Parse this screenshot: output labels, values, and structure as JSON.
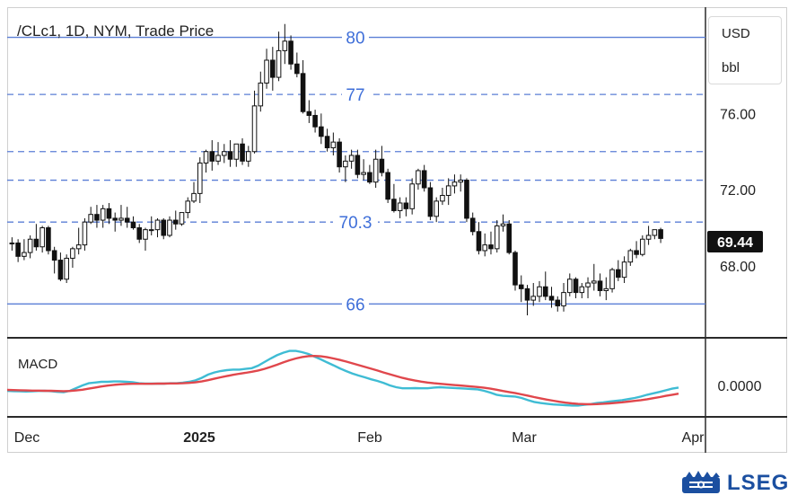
{
  "chart_data": [
    {
      "type": "candlestick",
      "title": "/CLc1, 1D, NYM, Trade Price",
      "currency": "USD",
      "unit": "bbl",
      "last_price_label": "69.44",
      "last_price": 69.44,
      "ylim": [
        64.6,
        81.3
      ],
      "y_ticks": [
        "76.00",
        "72.00",
        "68.00"
      ],
      "x_ticks": [
        "Dec",
        "2025",
        "Feb",
        "Mar",
        "Apr"
      ],
      "levels": [
        {
          "value": 80,
          "label": "80",
          "style": "solid"
        },
        {
          "value": 77,
          "label": "77",
          "style": "dashed"
        },
        {
          "value": 74,
          "label": "",
          "style": "dashed"
        },
        {
          "value": 72.5,
          "label": "",
          "style": "dashed"
        },
        {
          "value": 70.3,
          "label": "70.3",
          "style": "dashed"
        },
        {
          "value": 66,
          "label": "66",
          "style": "solid"
        }
      ],
      "candles": [
        [
          69.2,
          69.5,
          68.8,
          69.2
        ],
        [
          69.2,
          69.4,
          68.2,
          68.5
        ],
        [
          68.5,
          69.4,
          68.3,
          68.7
        ],
        [
          68.7,
          69.6,
          68.4,
          69.4
        ],
        [
          69.4,
          70.2,
          68.8,
          69.0
        ],
        [
          69.0,
          70.1,
          68.7,
          70.0
        ],
        [
          70.0,
          70.1,
          68.6,
          68.8
        ],
        [
          68.8,
          69.0,
          67.6,
          68.3
        ],
        [
          68.3,
          68.7,
          67.2,
          67.3
        ],
        [
          67.3,
          68.6,
          67.1,
          68.4
        ],
        [
          68.4,
          69.0,
          67.9,
          68.9
        ],
        [
          68.9,
          70.0,
          68.6,
          69.1
        ],
        [
          69.1,
          70.5,
          68.8,
          70.3
        ],
        [
          70.3,
          71.1,
          70.2,
          70.7
        ],
        [
          70.7,
          71.2,
          70.0,
          70.4
        ],
        [
          70.4,
          71.2,
          70.0,
          71.0
        ],
        [
          71.0,
          71.3,
          70.2,
          70.5
        ],
        [
          70.5,
          70.8,
          69.8,
          70.4
        ],
        [
          70.4,
          71.2,
          70.1,
          70.5
        ],
        [
          70.5,
          71.1,
          70.0,
          70.3
        ],
        [
          70.3,
          70.6,
          69.9,
          70.0
        ],
        [
          70.0,
          70.2,
          69.2,
          69.4
        ],
        [
          69.4,
          70.0,
          68.8,
          69.9
        ],
        [
          69.9,
          70.6,
          69.6,
          69.9
        ],
        [
          69.9,
          70.5,
          69.5,
          70.4
        ],
        [
          70.4,
          70.5,
          69.4,
          69.6
        ],
        [
          69.6,
          70.6,
          69.5,
          70.4
        ],
        [
          70.4,
          70.9,
          69.9,
          70.2
        ],
        [
          70.2,
          70.8,
          70.1,
          70.8
        ],
        [
          70.8,
          71.6,
          70.5,
          71.4
        ],
        [
          71.4,
          72.4,
          71.3,
          71.8
        ],
        [
          71.8,
          73.7,
          71.3,
          73.4
        ],
        [
          73.4,
          74.1,
          72.9,
          74.0
        ],
        [
          74.0,
          74.6,
          73.0,
          73.5
        ],
        [
          73.5,
          74.5,
          73.3,
          73.8
        ],
        [
          73.8,
          74.4,
          73.4,
          74.0
        ],
        [
          74.0,
          74.6,
          73.2,
          73.6
        ],
        [
          73.6,
          74.4,
          73.2,
          74.4
        ],
        [
          74.4,
          74.7,
          73.3,
          73.5
        ],
        [
          73.5,
          74.3,
          73.2,
          74.0
        ],
        [
          74.0,
          77.2,
          73.9,
          76.4
        ],
        [
          76.4,
          78.2,
          76.1,
          77.6
        ],
        [
          77.6,
          79.4,
          77.3,
          78.8
        ],
        [
          78.8,
          79.5,
          77.2,
          77.9
        ],
        [
          77.9,
          80.3,
          77.7,
          79.3
        ],
        [
          79.3,
          80.7,
          78.6,
          79.8
        ],
        [
          79.8,
          80.1,
          78.3,
          78.6
        ],
        [
          78.6,
          79.2,
          77.9,
          78.1
        ],
        [
          78.1,
          78.8,
          76.0,
          76.1
        ],
        [
          76.1,
          76.7,
          75.5,
          75.9
        ],
        [
          75.9,
          76.2,
          75.0,
          75.3
        ],
        [
          75.3,
          76.0,
          74.4,
          74.8
        ],
        [
          74.8,
          75.2,
          74.0,
          74.2
        ],
        [
          74.2,
          75.0,
          73.8,
          74.5
        ],
        [
          74.5,
          74.7,
          72.9,
          73.2
        ],
        [
          73.2,
          73.8,
          72.4,
          73.5
        ],
        [
          73.5,
          74.1,
          73.1,
          73.8
        ],
        [
          73.8,
          74.1,
          72.6,
          72.8
        ],
        [
          72.8,
          73.6,
          72.5,
          72.9
        ],
        [
          72.9,
          73.3,
          72.3,
          72.4
        ],
        [
          72.4,
          74.1,
          72.1,
          73.6
        ],
        [
          73.6,
          74.3,
          72.7,
          72.9
        ],
        [
          72.9,
          73.1,
          71.3,
          71.5
        ],
        [
          71.5,
          72.3,
          70.8,
          70.9
        ],
        [
          70.9,
          71.6,
          70.5,
          71.3
        ],
        [
          71.3,
          71.6,
          70.6,
          71.0
        ],
        [
          71.0,
          72.6,
          70.7,
          72.3
        ],
        [
          72.3,
          73.1,
          72.0,
          73.0
        ],
        [
          73.0,
          73.3,
          71.9,
          72.1
        ],
        [
          72.1,
          72.4,
          70.4,
          70.6
        ],
        [
          70.6,
          71.6,
          70.3,
          71.4
        ],
        [
          71.4,
          72.1,
          71.2,
          71.7
        ],
        [
          71.7,
          72.6,
          71.2,
          72.2
        ],
        [
          72.2,
          72.8,
          71.8,
          72.4
        ],
        [
          72.4,
          72.8,
          71.9,
          72.5
        ],
        [
          72.5,
          72.6,
          70.3,
          70.5
        ],
        [
          70.5,
          70.8,
          69.6,
          69.8
        ],
        [
          69.8,
          70.3,
          68.6,
          68.8
        ],
        [
          68.8,
          69.7,
          68.5,
          69.1
        ],
        [
          69.1,
          69.8,
          68.6,
          68.9
        ],
        [
          68.9,
          70.4,
          68.7,
          70.1
        ],
        [
          70.1,
          70.7,
          69.8,
          70.2
        ],
        [
          70.2,
          70.4,
          68.6,
          68.7
        ],
        [
          68.7,
          68.8,
          66.7,
          67.0
        ],
        [
          67.0,
          67.5,
          66.1,
          66.8
        ],
        [
          66.8,
          67.0,
          65.4,
          66.2
        ],
        [
          66.2,
          67.1,
          65.9,
          66.4
        ],
        [
          66.4,
          67.2,
          66.1,
          66.9
        ],
        [
          66.9,
          67.7,
          66.2,
          66.4
        ],
        [
          66.4,
          66.9,
          65.8,
          66.2
        ],
        [
          66.2,
          66.4,
          65.6,
          65.9
        ],
        [
          65.9,
          67.1,
          65.6,
          66.6
        ],
        [
          66.6,
          67.6,
          66.4,
          67.3
        ],
        [
          67.3,
          67.4,
          66.3,
          66.6
        ],
        [
          66.6,
          67.1,
          66.3,
          66.9
        ],
        [
          66.9,
          67.4,
          66.3,
          67.1
        ],
        [
          67.1,
          68.1,
          66.7,
          67.2
        ],
        [
          67.2,
          67.6,
          66.4,
          66.7
        ],
        [
          66.7,
          67.4,
          66.2,
          66.8
        ],
        [
          66.8,
          67.9,
          66.6,
          67.8
        ],
        [
          67.8,
          68.3,
          67.2,
          67.4
        ],
        [
          67.4,
          68.5,
          67.1,
          68.2
        ],
        [
          68.2,
          68.9,
          68.0,
          68.8
        ],
        [
          68.8,
          69.3,
          68.4,
          68.6
        ],
        [
          68.6,
          69.6,
          68.5,
          69.4
        ],
        [
          69.4,
          70.1,
          69.1,
          69.6
        ],
        [
          69.6,
          69.9,
          69.4,
          69.9
        ],
        [
          69.9,
          70.0,
          69.2,
          69.44
        ]
      ],
      "indicator": {
        "name": "MACD",
        "y_tick": "0.0000",
        "ylim": [
          -1.55,
          2.25
        ],
        "macd_color": "#3fbcd4",
        "signal_color": "#e0474c",
        "macd": [
          -0.3,
          -0.32,
          -0.33,
          -0.34,
          -0.33,
          -0.31,
          -0.3,
          -0.32,
          -0.36,
          -0.38,
          -0.3,
          -0.15,
          0.0,
          0.12,
          0.16,
          0.2,
          0.2,
          0.22,
          0.22,
          0.2,
          0.18,
          0.12,
          0.1,
          0.1,
          0.1,
          0.1,
          0.12,
          0.12,
          0.15,
          0.2,
          0.28,
          0.42,
          0.6,
          0.72,
          0.8,
          0.85,
          0.88,
          0.88,
          0.92,
          0.96,
          1.1,
          1.3,
          1.5,
          1.68,
          1.82,
          1.92,
          1.92,
          1.85,
          1.75,
          1.6,
          1.45,
          1.28,
          1.12,
          0.95,
          0.8,
          0.66,
          0.55,
          0.45,
          0.34,
          0.25,
          0.14,
          0.0,
          -0.1,
          -0.16,
          -0.16,
          -0.15,
          -0.16,
          -0.16,
          -0.12,
          -0.1,
          -0.12,
          -0.14,
          -0.16,
          -0.18,
          -0.2,
          -0.22,
          -0.3,
          -0.4,
          -0.52,
          -0.58,
          -0.6,
          -0.62,
          -0.7,
          -0.82,
          -0.92,
          -0.98,
          -1.02,
          -1.06,
          -1.08,
          -1.1,
          -1.12,
          -1.12,
          -1.08,
          -1.04,
          -0.98,
          -0.95,
          -0.9,
          -0.86,
          -0.82,
          -0.76,
          -0.7,
          -0.62,
          -0.52,
          -0.44,
          -0.36,
          -0.27,
          -0.18,
          -0.12
        ],
        "signal": [
          -0.25,
          -0.26,
          -0.27,
          -0.28,
          -0.29,
          -0.29,
          -0.3,
          -0.3,
          -0.31,
          -0.32,
          -0.31,
          -0.28,
          -0.24,
          -0.18,
          -0.12,
          -0.06,
          -0.01,
          0.03,
          0.06,
          0.08,
          0.09,
          0.09,
          0.09,
          0.09,
          0.1,
          0.1,
          0.11,
          0.11,
          0.12,
          0.14,
          0.17,
          0.22,
          0.29,
          0.37,
          0.45,
          0.52,
          0.59,
          0.65,
          0.7,
          0.76,
          0.83,
          0.92,
          1.03,
          1.15,
          1.28,
          1.4,
          1.5,
          1.58,
          1.63,
          1.64,
          1.62,
          1.57,
          1.5,
          1.42,
          1.33,
          1.23,
          1.13,
          1.03,
          0.93,
          0.83,
          0.72,
          0.62,
          0.52,
          0.42,
          0.34,
          0.27,
          0.21,
          0.16,
          0.12,
          0.09,
          0.06,
          0.03,
          0.0,
          -0.03,
          -0.06,
          -0.09,
          -0.13,
          -0.18,
          -0.24,
          -0.31,
          -0.37,
          -0.43,
          -0.5,
          -0.57,
          -0.65,
          -0.72,
          -0.79,
          -0.85,
          -0.91,
          -0.96,
          -1.0,
          -1.03,
          -1.04,
          -1.05,
          -1.04,
          -1.02,
          -1.0,
          -0.97,
          -0.94,
          -0.9,
          -0.86,
          -0.82,
          -0.77,
          -0.71,
          -0.65,
          -0.58,
          -0.52,
          -0.46
        ]
      }
    }
  ],
  "branding": {
    "name": "LSEG"
  }
}
